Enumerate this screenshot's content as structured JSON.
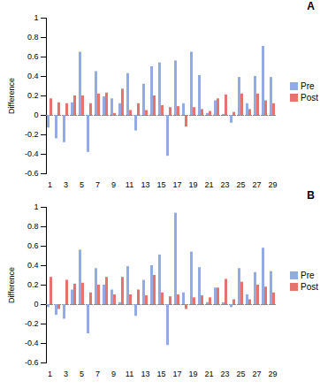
{
  "chart_data": [
    {
      "type": "bar",
      "title": "A",
      "y_label": "Difference",
      "categories": [
        "1",
        null,
        "3",
        null,
        "5",
        null,
        "7",
        null,
        "9",
        null,
        "11",
        null,
        "13",
        null,
        "15",
        null,
        "17",
        null,
        "19",
        null,
        "21",
        null,
        "23",
        null,
        "25",
        null,
        "27",
        null,
        "29"
      ],
      "series": [
        {
          "name": "Pre",
          "color": "#93abe3",
          "values": [
            -0.13,
            -0.24,
            -0.28,
            0.13,
            0.65,
            -0.38,
            0.45,
            0.19,
            0.17,
            0.12,
            0.43,
            -0.16,
            0.32,
            0.5,
            0.54,
            -0.42,
            0.56,
            0.12,
            0.65,
            0.41,
            0.02,
            0.15,
            0.01,
            -0.08,
            0.39,
            0.12,
            0.4,
            0.71,
            0.39
          ]
        },
        {
          "name": "Post",
          "color": "#e3746e",
          "values": [
            0.17,
            0.13,
            0.12,
            0.2,
            0.2,
            0.12,
            0.22,
            0.23,
            0.02,
            0.27,
            0.05,
            0.12,
            0.05,
            0.2,
            0.1,
            0.08,
            0.09,
            -0.12,
            0.08,
            0.06,
            0.04,
            0.17,
            0.21,
            0.03,
            0.22,
            0.06,
            0.22,
            0.15,
            0.12
          ]
        }
      ],
      "ylim": [
        -0.6,
        1
      ],
      "yticks": [
        -0.6,
        -0.4,
        -0.2,
        0,
        0.2,
        0.4,
        0.6,
        0.8,
        1
      ],
      "grid": false,
      "legend": "right"
    },
    {
      "type": "bar",
      "title": "B",
      "y_label": "Difference",
      "categories": [
        "1",
        null,
        "3",
        null,
        "5",
        null,
        "7",
        null,
        "9",
        null,
        "11",
        null,
        "13",
        null,
        "15",
        null,
        "17",
        null,
        "19",
        null,
        "21",
        null,
        "23",
        null,
        "25",
        null,
        "27",
        null,
        "29"
      ],
      "series": [
        {
          "name": "Pre",
          "color": "#93abe3",
          "values": [
            -0.03,
            -0.11,
            -0.15,
            0.15,
            0.56,
            -0.3,
            0.37,
            0.2,
            0.15,
            0.02,
            0.39,
            -0.12,
            0.25,
            0.4,
            0.51,
            -0.42,
            0.94,
            0.12,
            0.54,
            0.38,
            0.02,
            0.17,
            0.02,
            -0.03,
            0.37,
            0.1,
            0.33,
            0.58,
            0.34
          ]
        },
        {
          "name": "Post",
          "color": "#e3746e",
          "values": [
            0.28,
            -0.05,
            0.25,
            0.21,
            0.22,
            0.12,
            0.2,
            0.28,
            0.1,
            0.28,
            0.1,
            0.15,
            0.09,
            0.3,
            0.12,
            0.08,
            0.1,
            -0.05,
            0.07,
            0.09,
            0.07,
            0.17,
            0.26,
            0.05,
            0.23,
            0.05,
            0.2,
            0.18,
            0.12
          ]
        }
      ],
      "ylim": [
        -0.6,
        1
      ],
      "yticks": [
        -0.6,
        -0.4,
        -0.2,
        0,
        0.2,
        0.4,
        0.6,
        0.8,
        1
      ],
      "grid": false,
      "legend": "right"
    }
  ]
}
